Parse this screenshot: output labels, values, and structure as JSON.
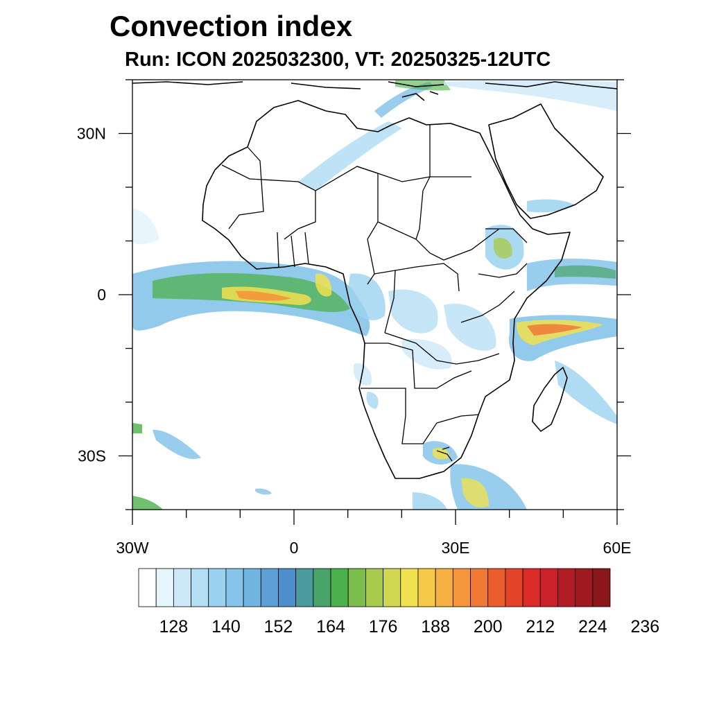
{
  "title": "Convection index",
  "subtitle": "Run: ICON 2025032300,  VT: 20250325-12UTC",
  "map": {
    "extent": {
      "lon": [
        -30,
        60
      ],
      "lat": [
        -40,
        40
      ]
    },
    "lat_labels": [
      {
        "lat": 30,
        "label": "30N"
      },
      {
        "lat": 0,
        "label": "0"
      },
      {
        "lat": -30,
        "label": "30S"
      }
    ],
    "lon_labels": [
      {
        "lon": -30,
        "label": "30W"
      },
      {
        "lon": 0,
        "label": "0"
      },
      {
        "lon": 30,
        "label": "30E"
      },
      {
        "lon": 60,
        "label": "60E"
      }
    ],
    "minor_lat_ticks": [
      40,
      20,
      10,
      -10,
      -20,
      -40
    ],
    "minor_lon_ticks": [
      -20,
      -10,
      10,
      20,
      40,
      50
    ]
  },
  "colorbar": {
    "colors": [
      "#ffffff",
      "#e6f4fc",
      "#cde9f8",
      "#b4def4",
      "#9bd2f0",
      "#86c4ea",
      "#72b4e2",
      "#5e9fd6",
      "#4d8fca",
      "#4b9a9e",
      "#4aa46a",
      "#4cb04c",
      "#7cbd4c",
      "#a8cb4e",
      "#cfd84f",
      "#f0e150",
      "#f6c94a",
      "#f7b043",
      "#f5953c",
      "#f07935",
      "#ea5e2e",
      "#e34329",
      "#da2b28",
      "#c9222a",
      "#b31c24",
      "#9f1a1f",
      "#8c171b"
    ],
    "labels": [
      "128",
      "140",
      "152",
      "164",
      "176",
      "188",
      "200",
      "212",
      "224",
      "236"
    ]
  }
}
